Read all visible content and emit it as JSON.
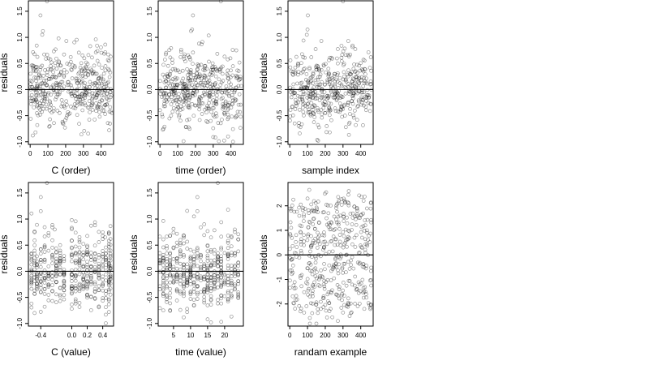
{
  "chart_data": [
    {
      "type": "scatter",
      "title": "",
      "xlabel": "C (order)",
      "ylabel": "residuals",
      "xlim": [
        -10,
        470
      ],
      "ylim": [
        -1.05,
        1.7
      ],
      "xticks": [
        0,
        100,
        200,
        300,
        400
      ],
      "xtick_labels": [
        "0",
        "100",
        "200",
        "300",
        "400"
      ],
      "yticks": [
        -1.0,
        -0.5,
        0.0,
        0.5,
        1.0,
        1.5
      ],
      "ytick_labels": [
        "-1.0",
        "-0.5",
        "0.0",
        "0.5",
        "1.0",
        "1.5"
      ],
      "y_axis_rotated": true,
      "reference_line_y": 0,
      "n_points": 460,
      "x_range": [
        0,
        460
      ],
      "y_range": [
        -0.98,
        1.69
      ],
      "series": [
        {
          "x_kind": "index",
          "points": [
            [
              58,
              1.42
            ],
            [
              95,
              1.69
            ],
            [
              72,
              1.12
            ],
            [
              68,
              1.05
            ],
            [
              160,
              0.98
            ],
            [
              204,
              0.93
            ],
            [
              305,
              0.6
            ],
            [
              388,
              0.48
            ],
            [
              30,
              -0.82
            ],
            [
              15,
              -0.88
            ],
            [
              40,
              -0.68
            ],
            [
              110,
              -0.7
            ],
            [
              196,
              -0.73
            ],
            [
              445,
              -0.78
            ],
            [
              20,
              0.45
            ],
            [
              400,
              0.25
            ],
            [
              460,
              -0.45
            ]
          ]
        }
      ],
      "grid": false
    },
    {
      "type": "scatter",
      "title": "",
      "xlabel": "time (order)",
      "ylabel": "residuals",
      "xlim": [
        -10,
        470
      ],
      "ylim": [
        -1.05,
        1.7
      ],
      "xticks": [
        0,
        100,
        200,
        300,
        400
      ],
      "xtick_labels": [
        "0",
        "100",
        "200",
        "300",
        "400"
      ],
      "yticks": [
        -1.0,
        -0.5,
        0.0,
        0.5,
        1.0,
        1.5
      ],
      "ytick_labels": [
        "-1.0",
        "-0.5",
        "0.0",
        "0.5",
        "1.0",
        "1.5"
      ],
      "y_axis_rotated": true,
      "reference_line_y": 0,
      "n_points": 460,
      "x_range": [
        0,
        460
      ],
      "y_range": [
        -1.0,
        1.69
      ],
      "series": [
        {
          "x_kind": "index",
          "points": [
            [
              343,
              1.69
            ],
            [
              186,
              1.42
            ],
            [
              175,
              1.12
            ],
            [
              181,
              1.15
            ],
            [
              220,
              0.88
            ],
            [
              430,
              0.75
            ],
            [
              20,
              -0.75
            ],
            [
              146,
              -0.72
            ],
            [
              300,
              -0.91
            ],
            [
              332,
              -0.99
            ],
            [
              286,
              -0.6
            ],
            [
              455,
              -0.52
            ],
            [
              60,
              0.35
            ]
          ]
        }
      ],
      "grid": false
    },
    {
      "type": "scatter",
      "title": "",
      "xlabel": "sample index",
      "ylabel": "residuals",
      "xlim": [
        -10,
        470
      ],
      "ylim": [
        -1.05,
        1.7
      ],
      "xticks": [
        0,
        100,
        200,
        300,
        400
      ],
      "xtick_labels": [
        "0",
        "100",
        "200",
        "300",
        "400"
      ],
      "yticks": [
        -1.0,
        -0.5,
        0.0,
        0.5,
        1.0,
        1.5
      ],
      "ytick_labels": [
        "-1.0",
        "-0.5",
        "0.0",
        "0.5",
        "1.0",
        "1.5"
      ],
      "y_axis_rotated": true,
      "reference_line_y": 0,
      "n_points": 460,
      "x_range": [
        0,
        460
      ],
      "y_range": [
        -0.98,
        1.69
      ],
      "series": [
        {
          "x_kind": "index",
          "points": [
            [
              300,
              1.69
            ],
            [
              102,
              1.42
            ],
            [
              100,
              1.15
            ],
            [
              96,
              1.05
            ],
            [
              178,
              0.93
            ],
            [
              340,
              0.67
            ],
            [
              56,
              -0.84
            ],
            [
              60,
              -0.72
            ],
            [
              208,
              -0.7
            ],
            [
              225,
              -0.82
            ],
            [
              316,
              -0.72
            ],
            [
              372,
              -0.68
            ],
            [
              445,
              -0.15
            ]
          ]
        }
      ],
      "grid": false
    },
    {
      "type": "scatter",
      "title": "",
      "xlabel": "C (value)",
      "ylabel": "residuals",
      "xlim": [
        -0.56,
        0.54
      ],
      "ylim": [
        -1.05,
        1.7
      ],
      "xticks": [
        -0.4,
        0.0,
        0.2,
        0.4
      ],
      "xtick_labels": [
        "-0.4",
        "0.0",
        "0.2",
        "0.4"
      ],
      "yticks": [
        -1.0,
        -0.5,
        0.0,
        0.5,
        1.0,
        1.5
      ],
      "ytick_labels": [
        "-1.0",
        "-0.5",
        "0.0",
        "0.5",
        "1.0",
        "1.5"
      ],
      "y_axis_rotated": true,
      "reference_line_y": 0,
      "n_points": 460,
      "x_discrete_levels": [
        -0.52,
        -0.48,
        -0.45,
        -0.4,
        -0.35,
        -0.3,
        -0.25,
        -0.2,
        -0.15,
        -0.1,
        0.0,
        0.05,
        0.1,
        0.15,
        0.2,
        0.25,
        0.3,
        0.35,
        0.4,
        0.44,
        0.48,
        0.5
      ],
      "series": [
        {
          "x_kind": "value",
          "points": [
            [
              -0.32,
              1.69
            ],
            [
              -0.4,
              1.42
            ],
            [
              -0.4,
              1.15
            ],
            [
              0.0,
              0.98
            ],
            [
              -0.22,
              0.8
            ],
            [
              0.43,
              0.65
            ],
            [
              -0.48,
              -0.8
            ],
            [
              -0.52,
              -0.62
            ],
            [
              -0.35,
              -0.68
            ],
            [
              0.0,
              -0.72
            ],
            [
              0.48,
              -0.78
            ],
            [
              0.2,
              -0.45
            ]
          ]
        }
      ],
      "grid": false
    },
    {
      "type": "scatter",
      "title": "",
      "xlabel": "time (value)",
      "ylabel": "residuals",
      "xlim": [
        0.5,
        25.5
      ],
      "ylim": [
        -1.05,
        1.7
      ],
      "xticks": [
        5,
        10,
        15,
        20
      ],
      "xtick_labels": [
        "5",
        "10",
        "15",
        "20"
      ],
      "yticks": [
        -1.0,
        -0.5,
        0.0,
        0.5,
        1.0,
        1.5
      ],
      "ytick_labels": [
        "-1.0",
        "-0.5",
        "0.0",
        "0.5",
        "1.0",
        "1.5"
      ],
      "y_axis_rotated": true,
      "reference_line_y": 0,
      "n_points": 460,
      "x_discrete_levels": [
        1,
        2,
        3,
        4,
        5,
        6,
        7,
        8,
        9,
        10,
        11,
        12,
        13,
        14,
        15,
        16,
        17,
        18,
        19,
        20,
        21,
        22,
        23,
        24
      ],
      "series": [
        {
          "x_kind": "value",
          "points": [
            [
              18,
              1.69
            ],
            [
              12,
              1.42
            ],
            [
              12,
              1.15
            ],
            [
              11,
              1.05
            ],
            [
              14,
              0.9
            ],
            [
              23,
              0.8
            ],
            [
              2,
              -0.75
            ],
            [
              9,
              -0.72
            ],
            [
              15,
              -0.92
            ],
            [
              16,
              -0.98
            ],
            [
              14,
              -0.6
            ],
            [
              24,
              -0.5
            ],
            [
              4,
              0.35
            ]
          ]
        }
      ],
      "grid": false
    },
    {
      "type": "scatter",
      "title": "",
      "xlabel": "randam example",
      "ylabel": "residuals",
      "xlim": [
        -10,
        470
      ],
      "ylim": [
        -2.9,
        2.95
      ],
      "xticks": [
        0,
        100,
        200,
        300,
        400
      ],
      "xtick_labels": [
        "0",
        "100",
        "200",
        "300",
        "400"
      ],
      "yticks": [
        -2,
        -1,
        0,
        1,
        2
      ],
      "ytick_labels": [
        "-2",
        "-1",
        "0",
        "1",
        "2"
      ],
      "y_axis_rotated": true,
      "reference_line_y": 0,
      "n_points": 460,
      "x_range": [
        0,
        460
      ],
      "y_range": [
        -2.8,
        2.65
      ],
      "series": [
        {
          "x_kind": "index",
          "points": [
            [
              110,
              2.65
            ],
            [
              205,
              2.55
            ],
            [
              330,
              2.45
            ],
            [
              20,
              2.25
            ],
            [
              150,
              -2.8
            ],
            [
              210,
              -2.55
            ],
            [
              60,
              -2.3
            ],
            [
              420,
              -2.2
            ],
            [
              455,
              -2.15
            ],
            [
              300,
              -2.35
            ]
          ]
        }
      ],
      "grid": false
    }
  ]
}
